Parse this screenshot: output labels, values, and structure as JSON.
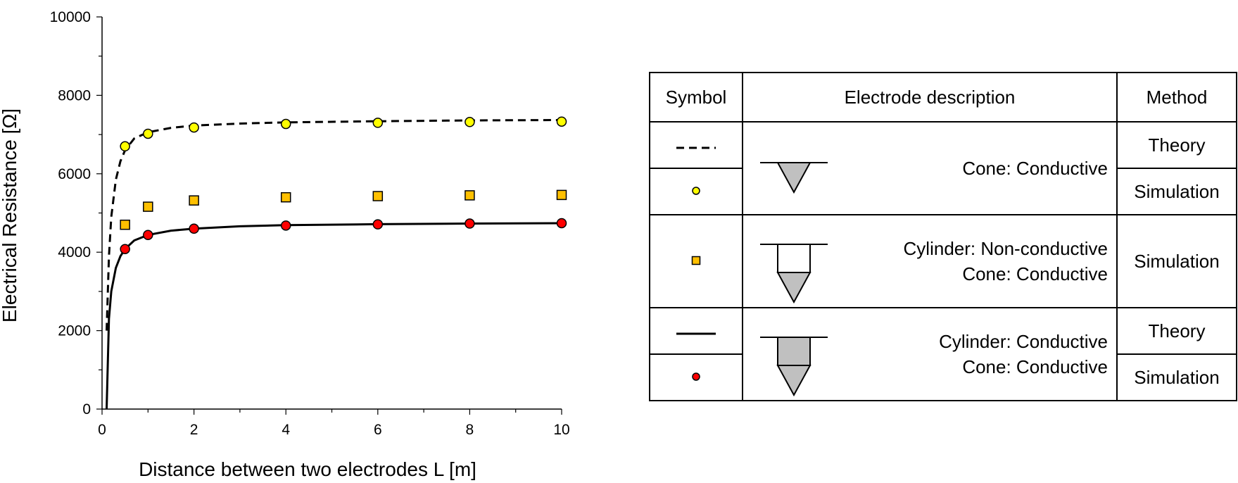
{
  "chart_data": {
    "type": "scatter",
    "xlabel": "Distance between two electrodes L [m]",
    "ylabel": "Electrical Resistance [Ω]",
    "xlim": [
      0,
      10
    ],
    "ylim": [
      0,
      10000
    ],
    "x_ticks": [
      "0",
      "2",
      "4",
      "6",
      "8",
      "10"
    ],
    "y_ticks": [
      "0",
      "2000",
      "4000",
      "6000",
      "8000",
      "10000"
    ],
    "grid": false,
    "series": [
      {
        "kind": "scatter",
        "marker": "circle",
        "color": "#ffff00",
        "x": [
          0.5,
          1,
          2,
          4,
          6,
          8,
          10
        ],
        "y": [
          6700,
          7020,
          7180,
          7270,
          7300,
          7320,
          7330
        ]
      },
      {
        "kind": "scatter",
        "marker": "square",
        "color": "#ffc000",
        "x": [
          0.5,
          1,
          2,
          4,
          6,
          8,
          10
        ],
        "y": [
          4700,
          5160,
          5320,
          5400,
          5430,
          5450,
          5460
        ]
      },
      {
        "kind": "scatter",
        "marker": "circle",
        "color": "#ff0000",
        "x": [
          0.5,
          1,
          2,
          4,
          6,
          8,
          10
        ],
        "y": [
          4080,
          4440,
          4600,
          4680,
          4710,
          4730,
          4740
        ]
      },
      {
        "kind": "line",
        "style": "dashed",
        "color": "#000000",
        "x": [
          0.1,
          0.15,
          0.2,
          0.3,
          0.4,
          0.5,
          0.7,
          1,
          1.5,
          2,
          3,
          4,
          6,
          8,
          10
        ],
        "y": [
          2000,
          3900,
          4900,
          5850,
          6320,
          6600,
          6900,
          7060,
          7170,
          7230,
          7280,
          7310,
          7340,
          7360,
          7370
        ]
      },
      {
        "kind": "line",
        "style": "solid",
        "color": "#000000",
        "x": [
          0.1,
          0.15,
          0.2,
          0.3,
          0.4,
          0.5,
          0.7,
          1,
          1.5,
          2,
          3,
          4,
          6,
          8,
          10
        ],
        "y": [
          0,
          2300,
          3000,
          3600,
          3900,
          4080,
          4300,
          4440,
          4550,
          4600,
          4660,
          4690,
          4715,
          4730,
          4740
        ]
      }
    ]
  },
  "legend_table": {
    "headers": {
      "symbol": "Symbol",
      "description": "Electrode description",
      "method": "Method"
    },
    "group1": {
      "line1": "Cone: Conductive",
      "method_a": "Theory",
      "method_b": "Simulation"
    },
    "group2": {
      "line1": "Cylinder: Non-conductive",
      "line2": "Cone: Conductive",
      "method": "Simulation"
    },
    "group3": {
      "line1": "Cylinder: Conductive",
      "line2": "Cone: Conductive",
      "method_a": "Theory",
      "method_b": "Simulation"
    }
  }
}
